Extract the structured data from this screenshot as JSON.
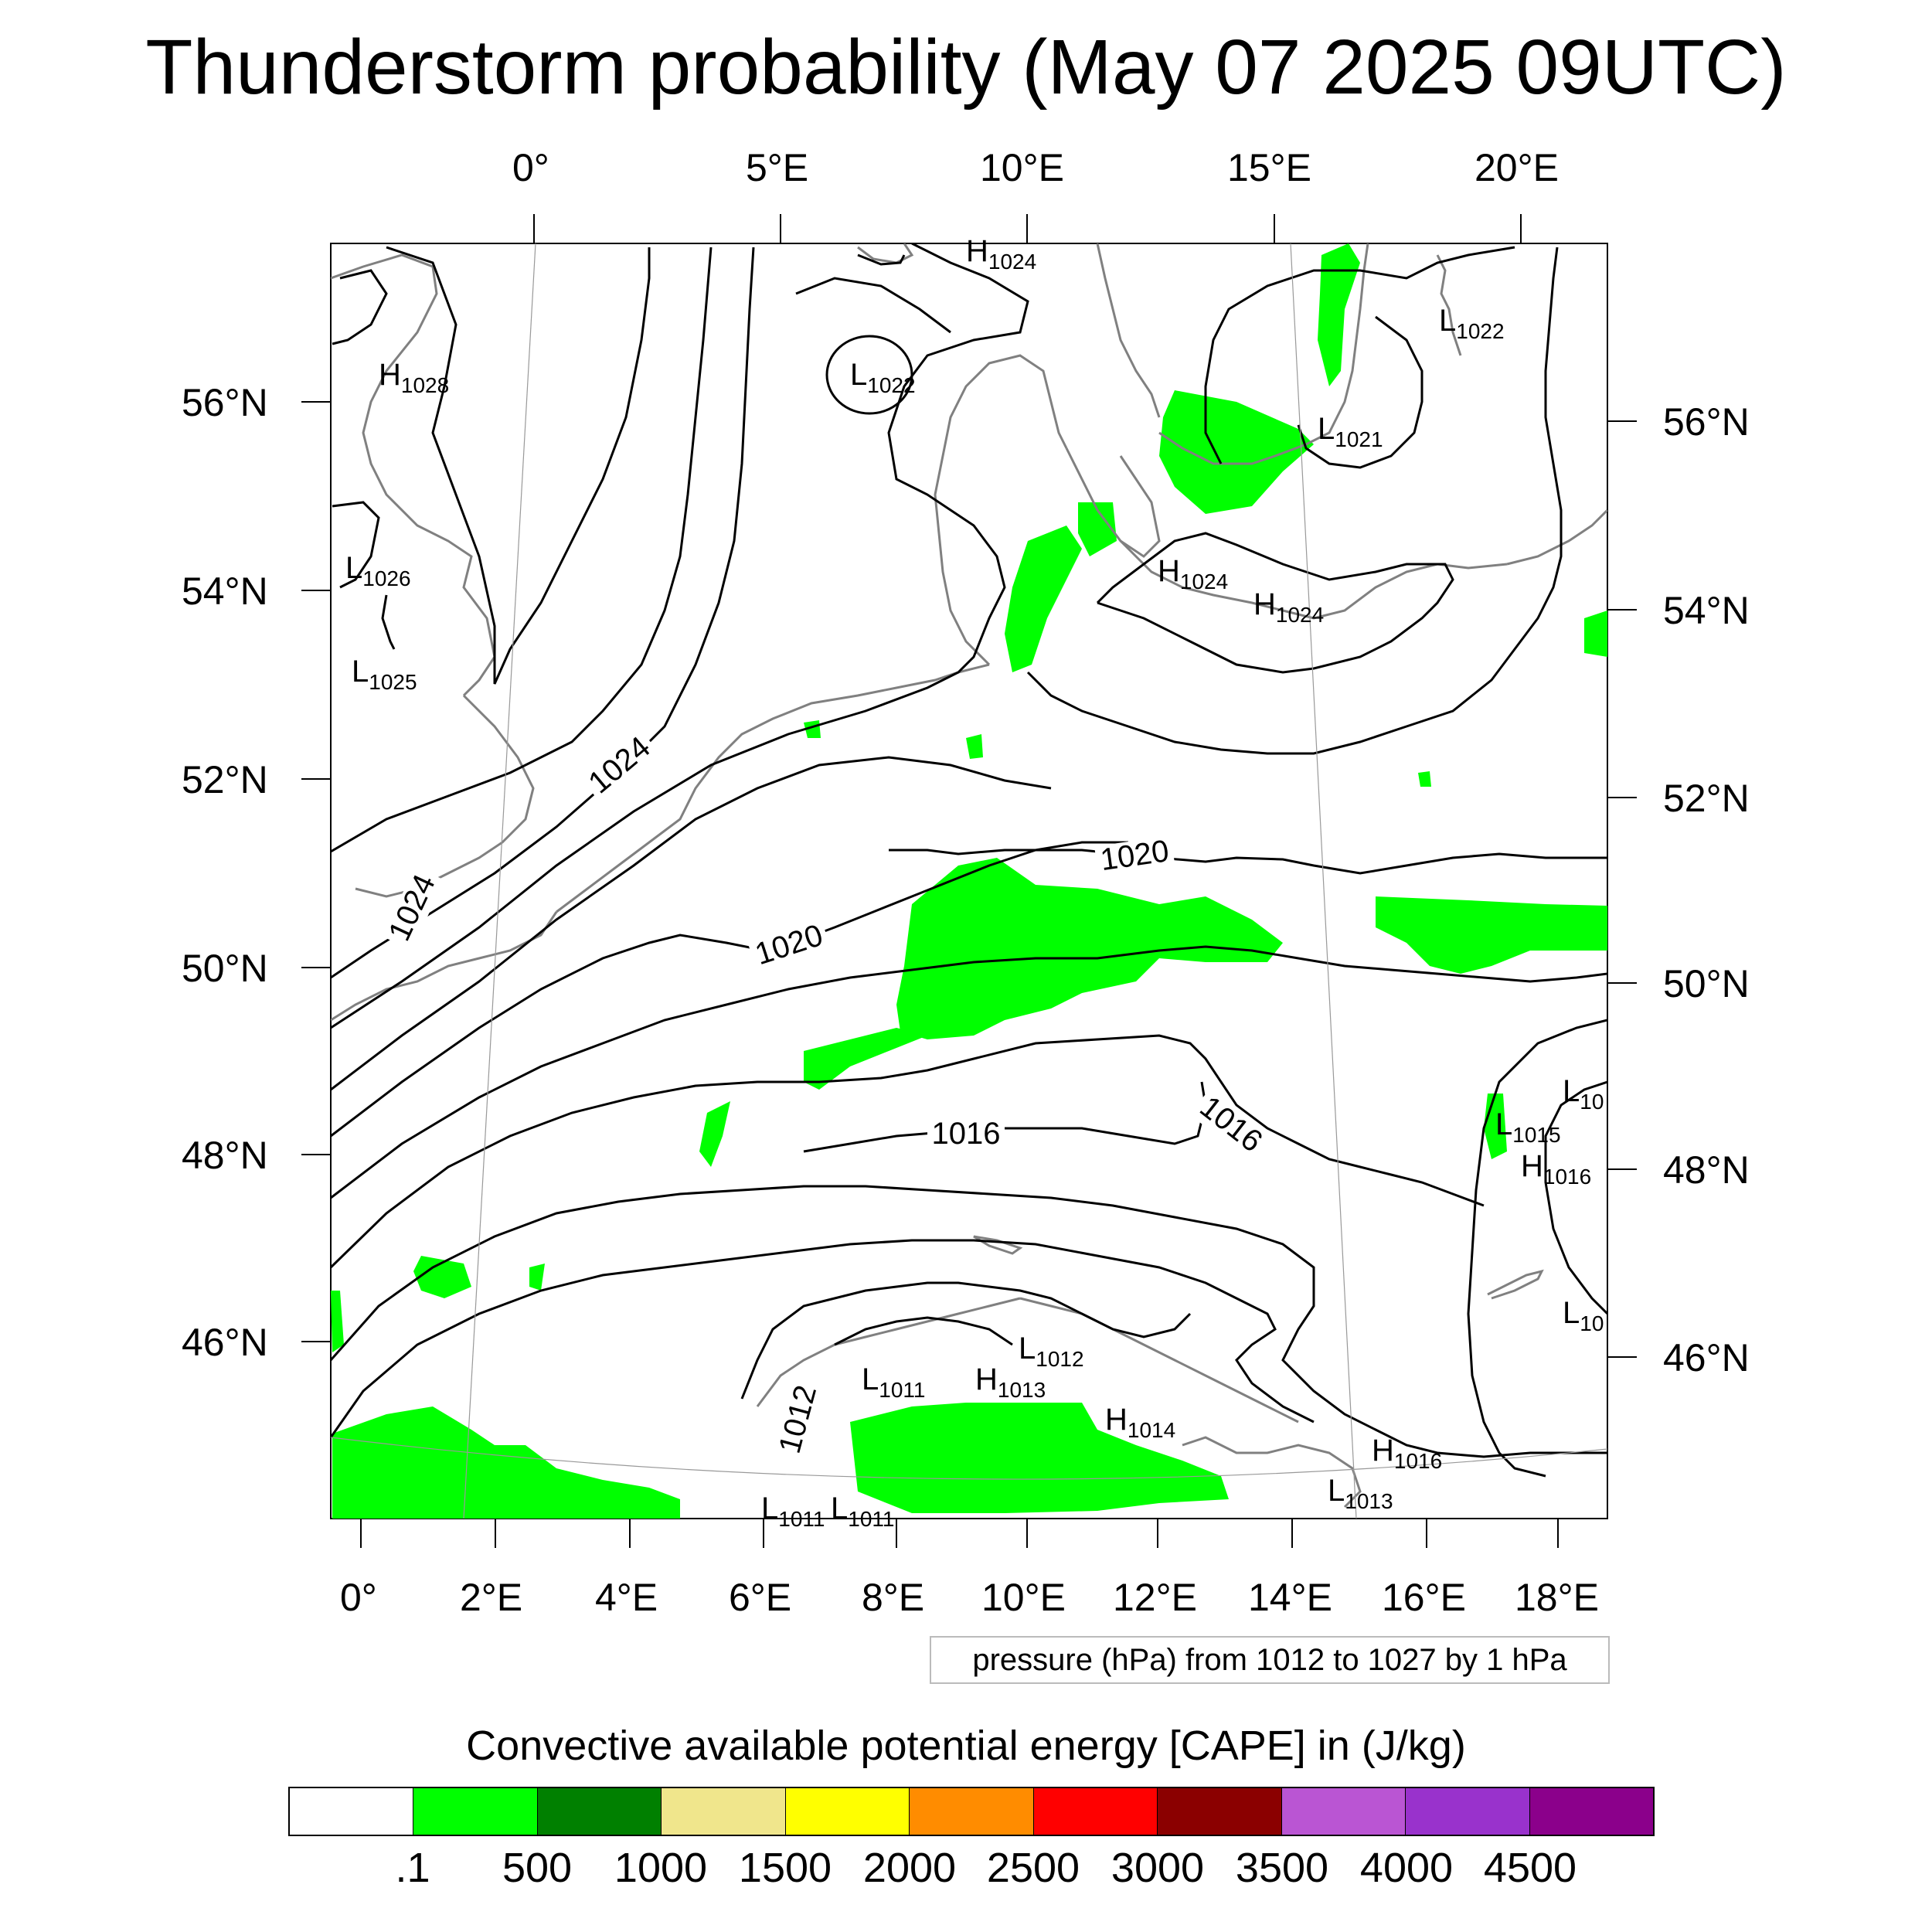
{
  "title": "Thunderstorm probability (May 07 2025 09UTC)",
  "map": {
    "top_lon_labels": [
      "0°",
      "5°E",
      "10°E",
      "15°E",
      "20°E"
    ],
    "bottom_lon_labels": [
      "0°",
      "2°E",
      "4°E",
      "6°E",
      "8°E",
      "10°E",
      "12°E",
      "14°E",
      "16°E",
      "18°E"
    ],
    "left_lat_labels": [
      "56°N",
      "54°N",
      "52°N",
      "50°N",
      "48°N",
      "46°N"
    ],
    "right_lat_labels": [
      "56°N",
      "54°N",
      "52°N",
      "50°N",
      "48°N",
      "46°N"
    ],
    "contour_labels": [
      "1024",
      "1024",
      "1020",
      "1020",
      "1016",
      "1016",
      "1012"
    ],
    "pressure_centers": [
      {
        "type": "H",
        "value": "1024"
      },
      {
        "type": "H",
        "value": "1028"
      },
      {
        "type": "L",
        "value": "1022"
      },
      {
        "type": "L",
        "value": "1022"
      },
      {
        "type": "L",
        "value": "1021"
      },
      {
        "type": "L",
        "value": "1026"
      },
      {
        "type": "L",
        "value": "1025"
      },
      {
        "type": "H",
        "value": "1024"
      },
      {
        "type": "H",
        "value": "1024"
      },
      {
        "type": "L",
        "value": "10"
      },
      {
        "type": "L",
        "value": "1015"
      },
      {
        "type": "H",
        "value": "1016"
      },
      {
        "type": "L",
        "value": "10"
      },
      {
        "type": "L",
        "value": "1012"
      },
      {
        "type": "L",
        "value": "1011"
      },
      {
        "type": "H",
        "value": "1013"
      },
      {
        "type": "H",
        "value": "1014"
      },
      {
        "type": "H",
        "value": "1016"
      },
      {
        "type": "L",
        "value": "1013"
      },
      {
        "type": "L",
        "value": "1011"
      },
      {
        "type": "L",
        "value": "1011"
      }
    ],
    "cape_fill_color": "#00ff00",
    "coastline_color": "#808080",
    "isobar_color": "#000000"
  },
  "contour_info": "pressure (hPa) from 1012 to 1027 by 1 hPa",
  "colorbar": {
    "title": "Convective available potential energy [CAPE] in (J/kg)",
    "colors": [
      "#ffffff",
      "#00ff00",
      "#008000",
      "#f0e68c",
      "#ffff00",
      "#ff8c00",
      "#ff0000",
      "#8b0000",
      "#ba55d3",
      "#9932cc",
      "#8b008b"
    ],
    "labels": [
      ".1",
      "500",
      "1000",
      "1500",
      "2000",
      "2500",
      "3000",
      "3500",
      "4000",
      "4500"
    ]
  }
}
